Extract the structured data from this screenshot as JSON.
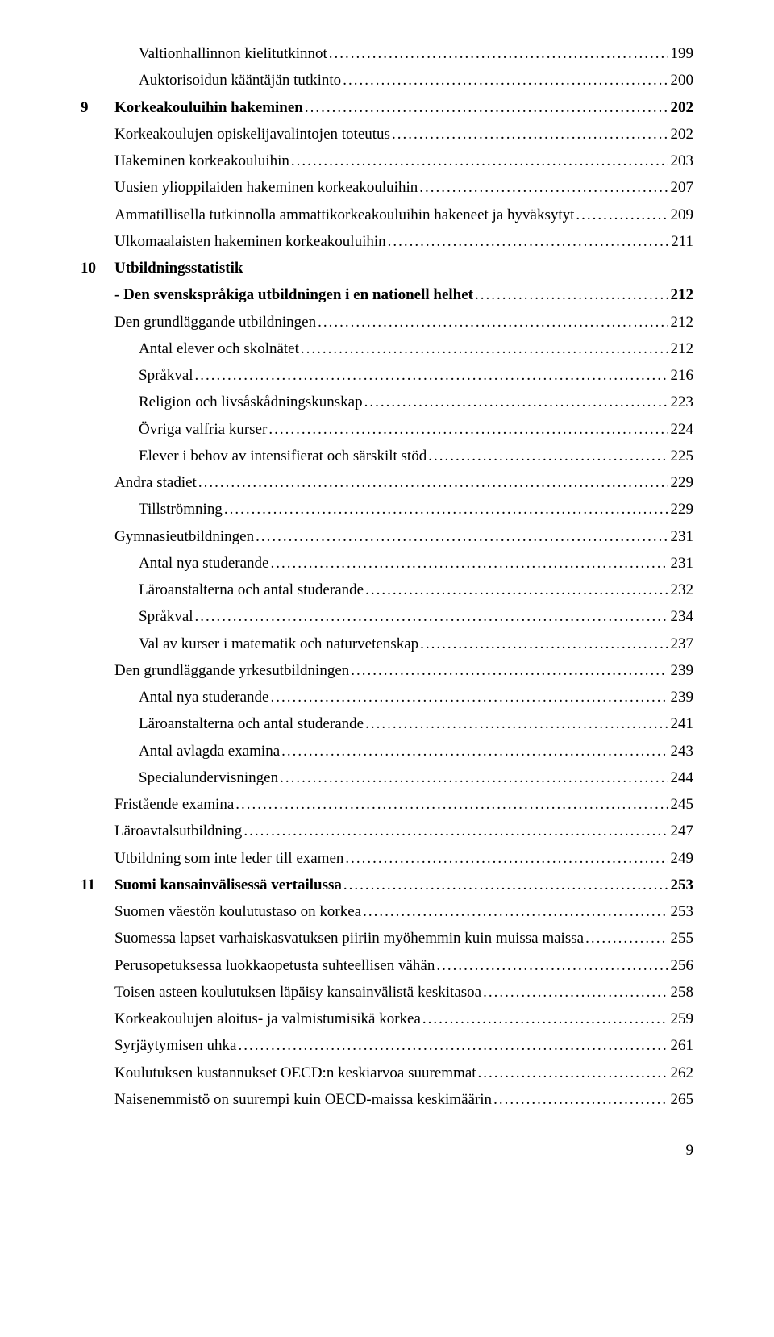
{
  "dots": "............................................................................................................................................................................................................",
  "entries": [
    {
      "num": "",
      "label": "Valtionhallinnon kielitutkinnot",
      "page": "199",
      "indent": 2,
      "bold": false
    },
    {
      "num": "",
      "label": "Auktorisoidun kääntäjän tutkinto",
      "page": "200",
      "indent": 2,
      "bold": false
    },
    {
      "num": "9",
      "label": "Korkeakouluihin hakeminen",
      "page": "202",
      "indent": 0,
      "bold": true
    },
    {
      "num": "",
      "label": "Korkeakoulujen opiskelijavalintojen toteutus",
      "page": "202",
      "indent": 1,
      "bold": false
    },
    {
      "num": "",
      "label": "Hakeminen korkeakouluihin",
      "page": "203",
      "indent": 1,
      "bold": false
    },
    {
      "num": "",
      "label": "Uusien ylioppilaiden hakeminen korkeakouluihin",
      "page": "207",
      "indent": 1,
      "bold": false
    },
    {
      "num": "",
      "label": "Ammatillisella tutkinnolla ammattikorkeakouluihin hakeneet ja hyväksytyt",
      "page": "209",
      "indent": 1,
      "bold": false
    },
    {
      "num": "",
      "label": "Ulkomaalaisten hakeminen korkeakouluihin",
      "page": "211",
      "indent": 1,
      "bold": false
    },
    {
      "num": "10",
      "label": "Utbildningsstatistik",
      "page": "",
      "indent": 0,
      "bold": true,
      "nodots": true
    },
    {
      "num": "",
      "label": "- Den svenskspråkiga utbildningen i en nationell helhet",
      "page": "212",
      "indent": 1,
      "bold": true
    },
    {
      "num": "",
      "label": "Den grundläggande utbildningen",
      "page": "212",
      "indent": 1,
      "bold": false
    },
    {
      "num": "",
      "label": "Antal elever och skolnätet",
      "page": "212",
      "indent": 2,
      "bold": false
    },
    {
      "num": "",
      "label": "Språkval",
      "page": "216",
      "indent": 2,
      "bold": false
    },
    {
      "num": "",
      "label": "Religion och livsåskådningskunskap",
      "page": "223",
      "indent": 2,
      "bold": false
    },
    {
      "num": "",
      "label": "Övriga valfria kurser",
      "page": "224",
      "indent": 2,
      "bold": false
    },
    {
      "num": "",
      "label": "Elever i behov av intensifierat och särskilt stöd",
      "page": "225",
      "indent": 2,
      "bold": false
    },
    {
      "num": "",
      "label": "Andra stadiet",
      "page": "229",
      "indent": 1,
      "bold": false
    },
    {
      "num": "",
      "label": "Tillströmning",
      "page": "229",
      "indent": 2,
      "bold": false
    },
    {
      "num": "",
      "label": "Gymnasieutbildningen",
      "page": "231",
      "indent": 1,
      "bold": false
    },
    {
      "num": "",
      "label": "Antal nya studerande",
      "page": "231",
      "indent": 2,
      "bold": false
    },
    {
      "num": "",
      "label": "Läroanstalterna och antal studerande",
      "page": "232",
      "indent": 2,
      "bold": false
    },
    {
      "num": "",
      "label": "Språkval",
      "page": "234",
      "indent": 2,
      "bold": false
    },
    {
      "num": "",
      "label": "Val av kurser i matematik och naturvetenskap",
      "page": "237",
      "indent": 2,
      "bold": false
    },
    {
      "num": "",
      "label": "Den grundläggande yrkesutbildningen",
      "page": "239",
      "indent": 1,
      "bold": false
    },
    {
      "num": "",
      "label": "Antal nya studerande",
      "page": "239",
      "indent": 2,
      "bold": false
    },
    {
      "num": "",
      "label": "Läroanstalterna och antal studerande",
      "page": "241",
      "indent": 2,
      "bold": false
    },
    {
      "num": "",
      "label": "Antal avlagda examina",
      "page": "243",
      "indent": 2,
      "bold": false
    },
    {
      "num": "",
      "label": "Specialundervisningen",
      "page": "244",
      "indent": 2,
      "bold": false
    },
    {
      "num": "",
      "label": "Fristående examina",
      "page": "245",
      "indent": 1,
      "bold": false
    },
    {
      "num": "",
      "label": "Läroavtalsutbildning",
      "page": "247",
      "indent": 1,
      "bold": false
    },
    {
      "num": "",
      "label": "Utbildning som inte leder till examen",
      "page": "249",
      "indent": 1,
      "bold": false
    },
    {
      "num": "11",
      "label": "Suomi kansainvälisessä vertailussa",
      "page": "253",
      "indent": 0,
      "bold": true
    },
    {
      "num": "",
      "label": "Suomen väestön koulutustaso on korkea",
      "page": "253",
      "indent": 1,
      "bold": false
    },
    {
      "num": "",
      "label": "Suomessa lapset varhaiskasvatuksen piiriin myöhemmin kuin muissa maissa",
      "page": "255",
      "indent": 1,
      "bold": false
    },
    {
      "num": "",
      "label": "Perusopetuksessa luokkaopetusta suhteellisen vähän",
      "page": "256",
      "indent": 1,
      "bold": false
    },
    {
      "num": "",
      "label": "Toisen asteen koulutuksen läpäisy kansainvälistä keskitasoa",
      "page": "258",
      "indent": 1,
      "bold": false
    },
    {
      "num": "",
      "label": "Korkeakoulujen aloitus- ja valmistumisikä korkea",
      "page": "259",
      "indent": 1,
      "bold": false
    },
    {
      "num": "",
      "label": "Syrjäytymisen uhka",
      "page": "261",
      "indent": 1,
      "bold": false
    },
    {
      "num": "",
      "label": "Koulutuksen kustannukset OECD:n keskiarvoa suuremmat",
      "page": "262",
      "indent": 1,
      "bold": false
    },
    {
      "num": "",
      "label": "Naisenemmistö on suurempi kuin OECD-maissa keskimäärin",
      "page": "265",
      "indent": 1,
      "bold": false
    }
  ],
  "pageNumber": "9"
}
